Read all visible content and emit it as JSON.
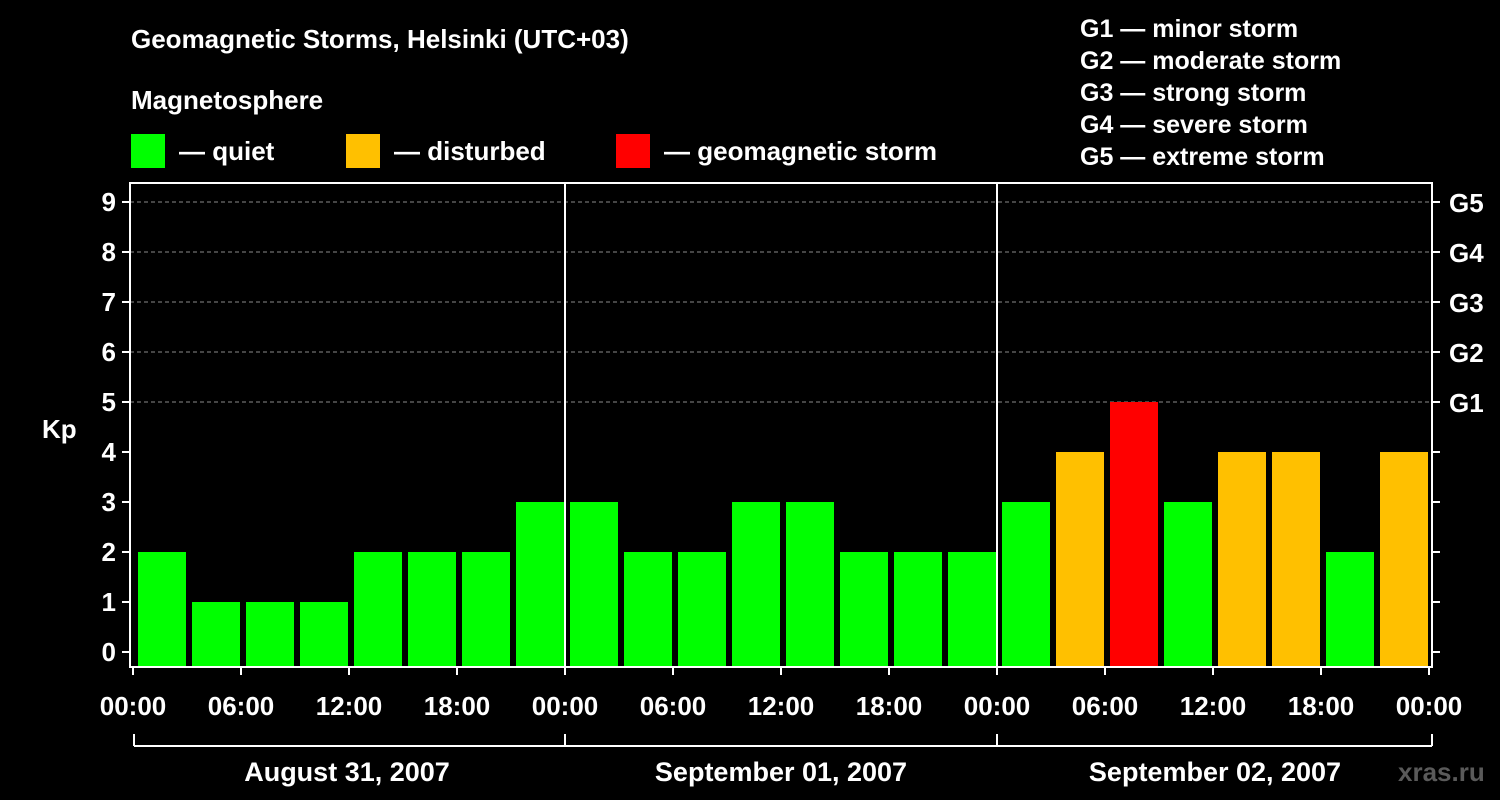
{
  "chart_data": {
    "type": "bar",
    "title": "Geomagnetic Storms, Helsinki (UTC+03)",
    "ylabel": "Kp",
    "ylim": [
      0,
      9
    ],
    "y_ticks": [
      "0",
      "1",
      "2",
      "3",
      "4",
      "5",
      "6",
      "7",
      "8",
      "9"
    ],
    "right_axis_labels": [
      {
        "kp": 5,
        "label": "G1"
      },
      {
        "kp": 6,
        "label": "G2"
      },
      {
        "kp": 7,
        "label": "G3"
      },
      {
        "kp": 8,
        "label": "G4"
      },
      {
        "kp": 9,
        "label": "G5"
      }
    ],
    "x_tick_labels": [
      "00:00",
      "06:00",
      "12:00",
      "18:00",
      "00:00",
      "06:00",
      "12:00",
      "18:00",
      "00:00",
      "06:00",
      "12:00",
      "18:00",
      "00:00"
    ],
    "days": [
      "August 31, 2007",
      "September 01, 2007",
      "September 02, 2007"
    ],
    "bars_per_day": 8,
    "values": [
      2,
      1,
      1,
      1,
      2,
      2,
      2,
      3,
      3,
      2,
      2,
      3,
      3,
      2,
      2,
      2,
      3,
      4,
      5,
      3,
      4,
      4,
      2,
      4
    ],
    "status": [
      "quiet",
      "quiet",
      "quiet",
      "quiet",
      "quiet",
      "quiet",
      "quiet",
      "quiet",
      "quiet",
      "quiet",
      "quiet",
      "quiet",
      "quiet",
      "quiet",
      "quiet",
      "quiet",
      "quiet",
      "disturbed",
      "storm",
      "quiet",
      "disturbed",
      "disturbed",
      "quiet",
      "disturbed"
    ],
    "grid": true
  },
  "legend": {
    "heading": "Magnetosphere",
    "items": [
      {
        "key": "quiet",
        "label": "— quiet",
        "color": "#00ff00"
      },
      {
        "key": "disturbed",
        "label": "— disturbed",
        "color": "#ffc000"
      },
      {
        "key": "storm",
        "label": "— geomagnetic storm",
        "color": "#ff0000"
      }
    ]
  },
  "storm_levels": [
    "G1 — minor storm",
    "G2 — moderate storm",
    "G3 — strong storm",
    "G4 — severe storm",
    "G5 — extreme storm"
  ],
  "watermark": "xras.ru"
}
